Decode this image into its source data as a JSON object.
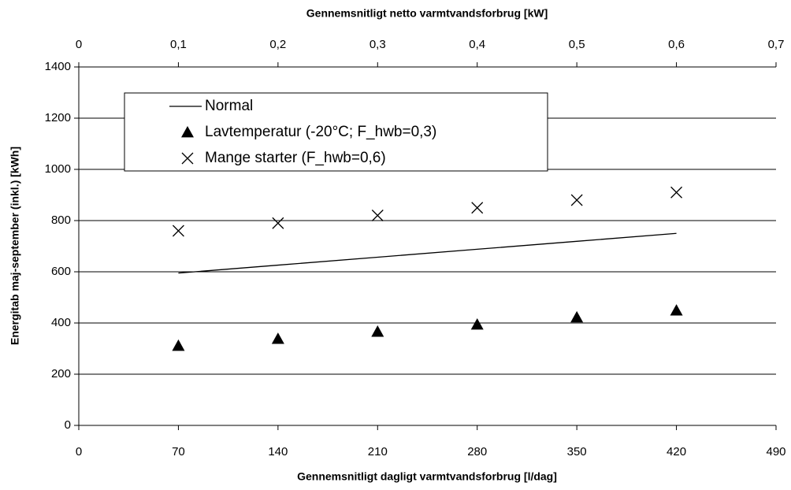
{
  "chart_data": {
    "type": "scatter",
    "x_label": "Gennemsnitligt dagligt varmtvandsforbrug  [l/dag]",
    "x2_label": "Gennemsnitligt netto varmtvandsforbrug  [kW]",
    "y_label": "Energitab maj-september (inkl.) [kWh]",
    "x": [
      70,
      140,
      210,
      280,
      350,
      420
    ],
    "series": [
      {
        "name": "Normal",
        "color": "#000000",
        "style": "line",
        "values": [
          595,
          626,
          657,
          688,
          719,
          750
        ]
      },
      {
        "name": "Lavtemperatur (-20°C; F_hwb=0,3)",
        "color": "#000000",
        "style": "triangle",
        "values": [
          311,
          338,
          366,
          394,
          422,
          449
        ]
      },
      {
        "name": "Mange starter (F_hwb=0,6)",
        "color": "#000000",
        "style": "cross",
        "values": [
          760,
          790,
          820,
          850,
          880,
          910
        ]
      }
    ],
    "xlim": [
      0,
      490
    ],
    "xticks": [
      0,
      70,
      140,
      210,
      280,
      350,
      420,
      490
    ],
    "x2lim": [
      0,
      0.7
    ],
    "x2ticks": [
      0,
      {
        "value": 0.1,
        "label": "0,1"
      },
      {
        "value": 0.2,
        "label": "0,2"
      },
      {
        "value": 0.3,
        "label": "0,3"
      },
      {
        "value": 0.4,
        "label": "0,4"
      },
      {
        "value": 0.5,
        "label": "0,5"
      },
      {
        "value": 0.6,
        "label": "0,6"
      },
      {
        "value": 0.7,
        "label": "0,7"
      }
    ],
    "ylim": [
      0,
      1400
    ],
    "yticks": [
      0,
      200,
      400,
      600,
      800,
      1000,
      1200,
      1400
    ],
    "grid": true,
    "legend": "upper left"
  }
}
